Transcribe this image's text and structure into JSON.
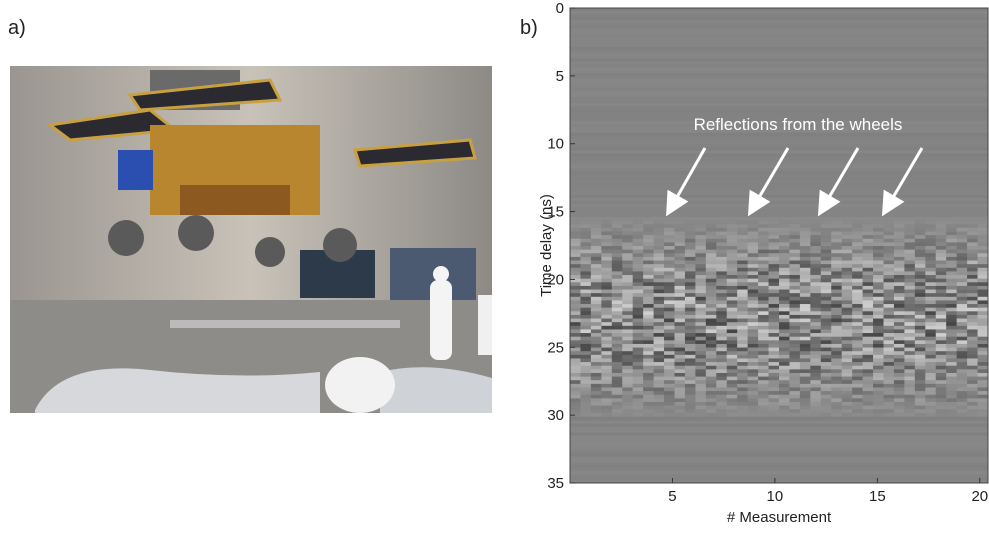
{
  "panel_labels": {
    "a": "a)",
    "b": "b)"
  },
  "chart_data": {
    "type": "radargram",
    "xlabel": "# Measurement",
    "ylabel": "Time delay (ns)",
    "xlim": [
      0,
      20.4
    ],
    "xticks": [
      5,
      10,
      15,
      20
    ],
    "ylim": [
      35,
      0
    ],
    "yticks": [
      0,
      5,
      10,
      15,
      20,
      25,
      30,
      35
    ],
    "annotation": "Reflections from the wheels"
  }
}
